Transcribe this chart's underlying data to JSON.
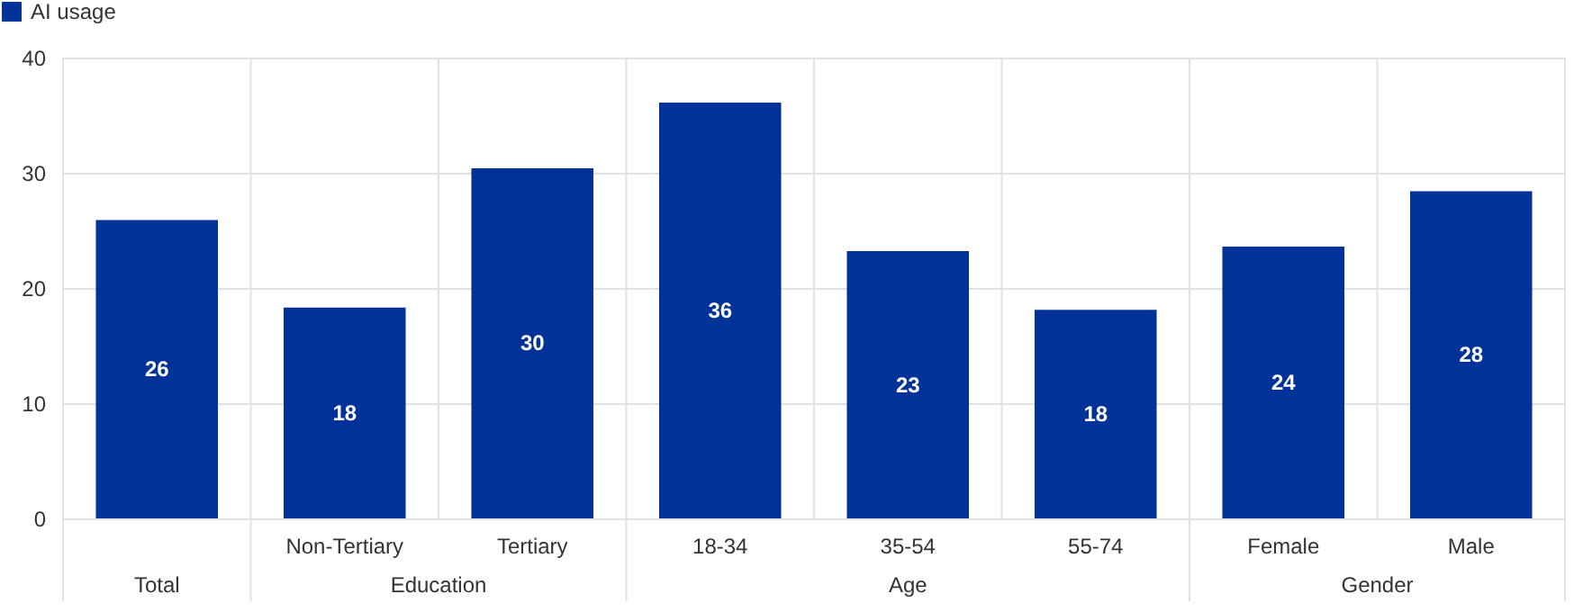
{
  "chart_data": {
    "type": "bar",
    "categories": [
      null,
      "Non-Tertiary",
      "Tertiary",
      "18-34",
      "35-54",
      "55-74",
      "Female",
      "Male"
    ],
    "series": [
      {
        "name": "AI usage",
        "color": "#003299",
        "values": [
          25.9,
          18.3,
          30.4,
          36.1,
          23.2,
          18.1,
          23.6,
          28.4
        ],
        "value_labels": [
          "26",
          "18",
          "30",
          "36",
          "23",
          "18",
          "24",
          "28"
        ]
      }
    ],
    "annotations": [
      "Total",
      "Education",
      "Age",
      "Gender"
    ],
    "ylim": [
      0,
      40
    ],
    "yticks": [
      0,
      10,
      20,
      30,
      40
    ],
    "grid": true,
    "legend": "top left"
  }
}
